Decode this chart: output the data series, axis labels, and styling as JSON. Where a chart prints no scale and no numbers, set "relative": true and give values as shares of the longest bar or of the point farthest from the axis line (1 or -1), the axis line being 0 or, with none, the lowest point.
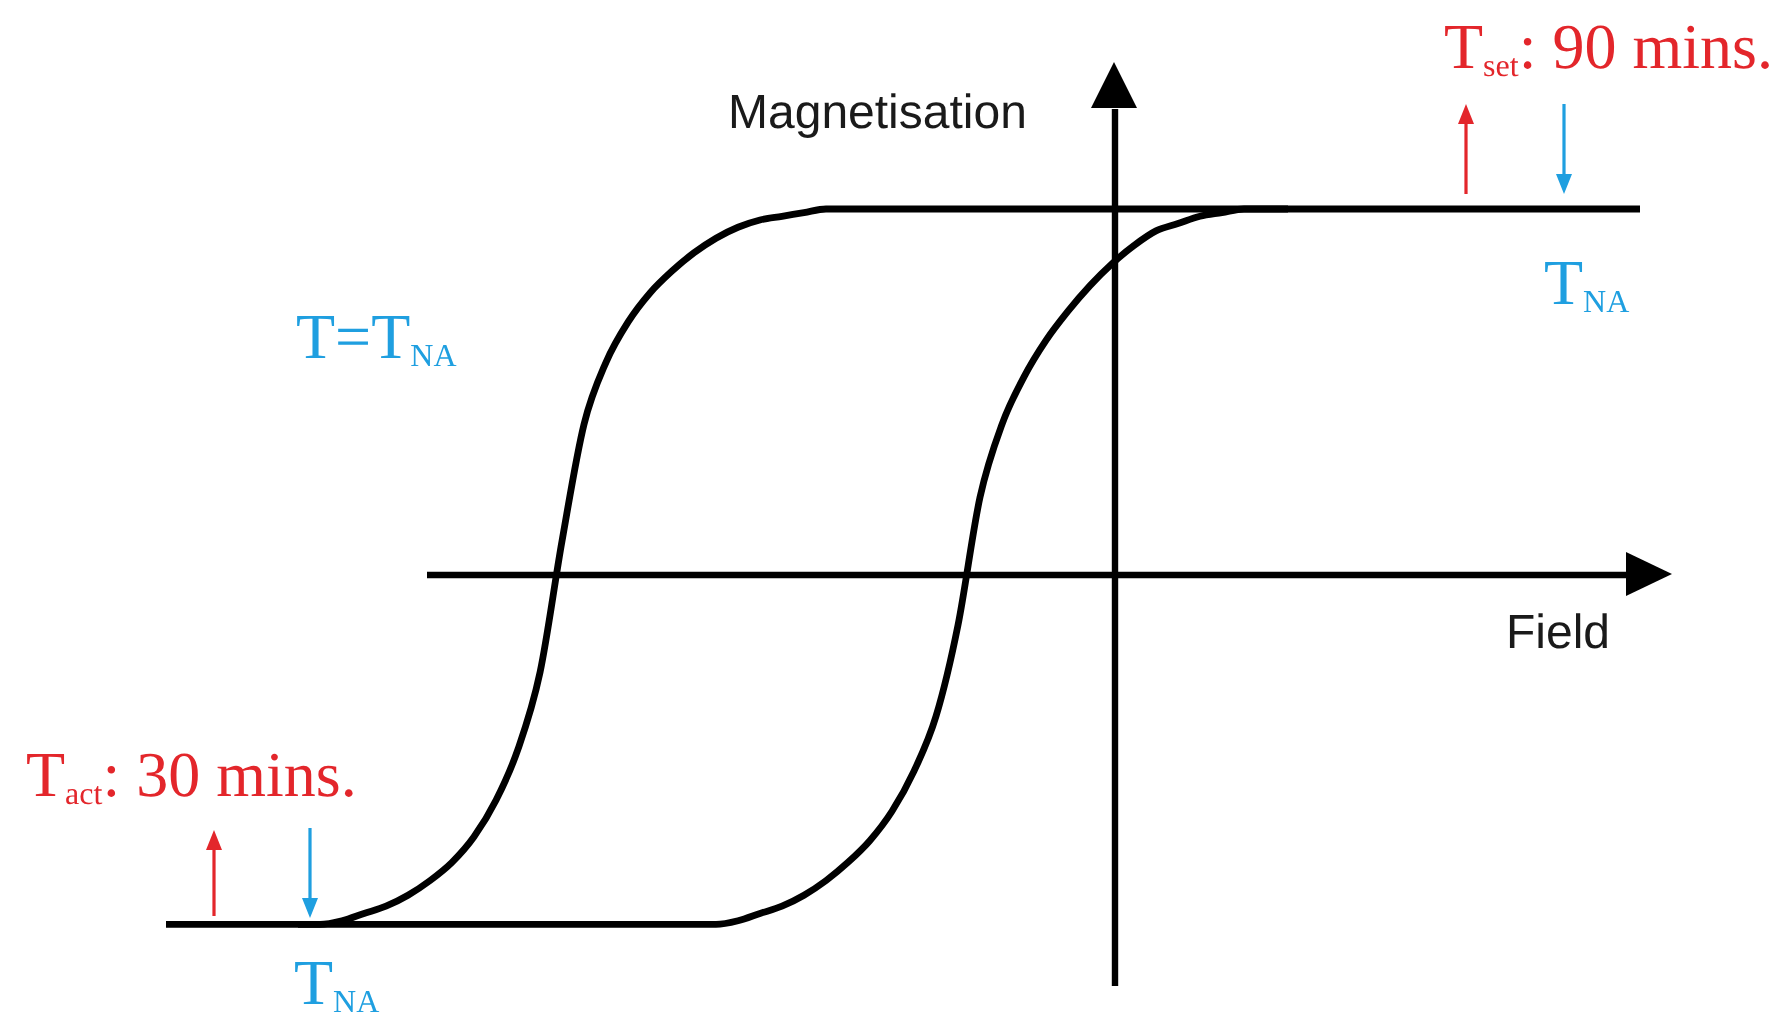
{
  "chart_data": {
    "type": "line",
    "relative": true,
    "xlabel": "Field",
    "ylabel": "Magnetisation",
    "line_style": "solid",
    "categories": [
      null,
      null,
      null,
      null,
      null,
      null,
      null,
      null,
      null,
      null,
      null,
      null,
      null,
      null,
      null,
      null,
      null,
      null,
      null,
      null,
      null,
      null,
      null,
      null,
      null,
      null,
      null,
      null,
      null,
      null,
      null,
      null,
      null,
      null,
      null,
      null,
      null,
      null,
      null,
      null,
      null,
      null,
      null,
      null,
      null,
      null,
      null,
      null,
      null,
      null,
      null,
      null,
      null,
      null,
      null,
      null,
      null,
      null,
      null,
      null,
      null,
      null,
      null,
      null,
      null,
      null,
      null,
      null
    ],
    "series": [
      {
        "color": "#000000",
        "values": [
          null,
          null,
          null,
          null,
          null,
          null,
          -0.96,
          -0.96,
          -0.95,
          -0.93,
          -0.91,
          -0.88,
          -0.84,
          -0.79,
          -0.72,
          -0.62,
          -0.48,
          -0.27,
          0.09,
          0.41,
          0.58,
          0.69,
          0.77,
          0.83,
          0.88,
          0.92,
          0.95,
          0.97,
          0.98,
          0.99,
          1,
          1,
          1,
          1,
          1,
          1,
          1,
          1,
          1,
          1,
          1,
          1,
          1,
          1,
          1,
          1,
          1,
          1,
          1,
          1,
          1,
          1,
          1,
          1,
          1,
          1,
          1,
          1,
          1,
          1,
          1,
          1,
          1,
          1,
          1,
          1,
          1,
          1
        ]
      },
      {
        "color": "#000000",
        "values": [
          -0.96,
          -0.96,
          -0.96,
          -0.96,
          -0.96,
          -0.96,
          -0.96,
          -0.96,
          -0.96,
          -0.96,
          -0.96,
          -0.96,
          -0.96,
          -0.96,
          -0.96,
          -0.96,
          -0.96,
          -0.96,
          -0.96,
          -0.96,
          -0.96,
          -0.96,
          -0.96,
          -0.96,
          -0.96,
          -0.96,
          -0.95,
          -0.93,
          -0.91,
          -0.88,
          -0.84,
          -0.79,
          -0.73,
          -0.65,
          -0.54,
          -0.39,
          -0.14,
          0.21,
          0.41,
          0.54,
          0.64,
          0.72,
          0.79,
          0.85,
          0.9,
          0.94,
          0.96,
          0.98,
          0.99,
          1,
          1,
          1,
          null,
          null,
          null,
          null,
          null,
          null,
          null,
          null,
          null,
          null,
          null,
          null,
          null,
          null,
          null,
          null
        ]
      }
    ],
    "annotations": [
      "T$_{set}$: 90 mins.",
      "T$_{NA}$",
      "T=T$_{NA}$",
      "T$_{act}$: 30 mins.",
      "T$_{NA}$"
    ]
  }
}
